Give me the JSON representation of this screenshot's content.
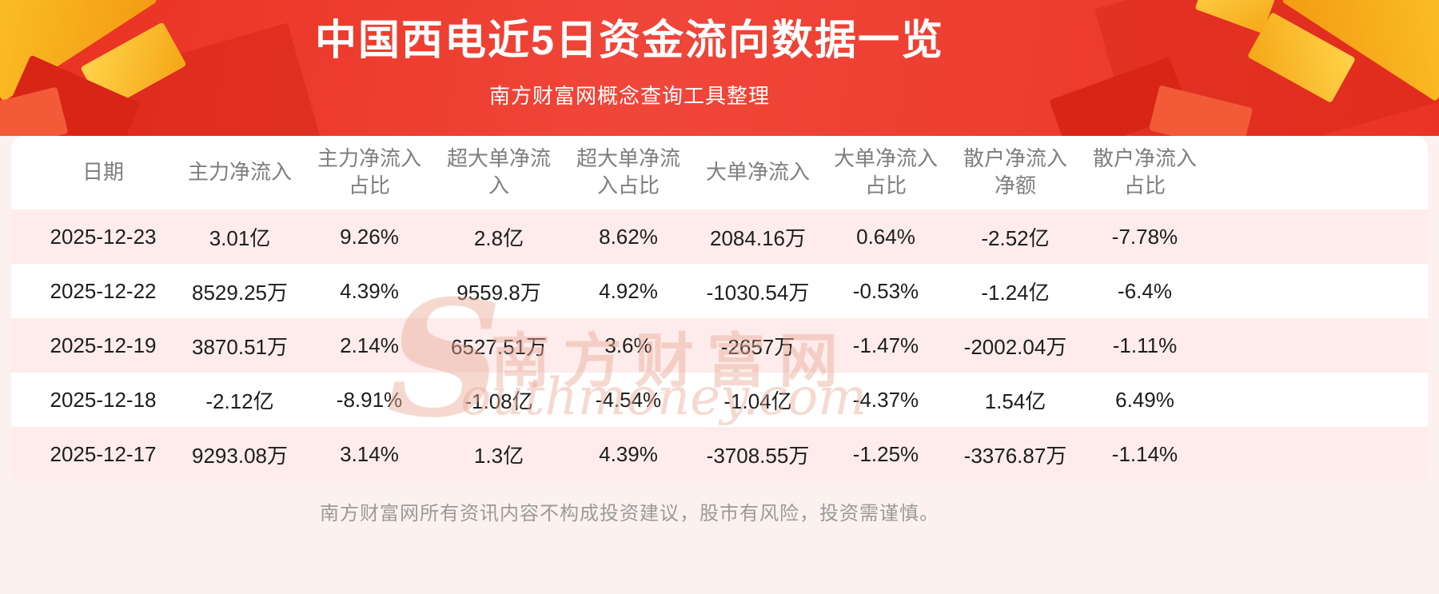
{
  "chart_data": {
    "type": "table",
    "title": "中国西电近5日资金流向数据一览",
    "subtitle": "南方财富网概念查询工具整理",
    "columns": [
      "日期",
      "主力净流入",
      "主力净流入占比",
      "超大单净流入",
      "超大单净流入占比",
      "大单净流入",
      "大单净流入占比",
      "散户净流入净额",
      "散户净流入占比"
    ],
    "rows": [
      [
        "2025-12-23",
        "3.01亿",
        "9.26%",
        "2.8亿",
        "8.62%",
        "2084.16万",
        "0.64%",
        "-2.52亿",
        "-7.78%"
      ],
      [
        "2025-12-22",
        "8529.25万",
        "4.39%",
        "9559.8万",
        "4.92%",
        "-1030.54万",
        "-0.53%",
        "-1.24亿",
        "-6.4%"
      ],
      [
        "2025-12-19",
        "3870.51万",
        "2.14%",
        "6527.51万",
        "3.6%",
        "-2657万",
        "-1.47%",
        "-2002.04万",
        "-1.11%"
      ],
      [
        "2025-12-18",
        "-2.12亿",
        "-8.91%",
        "-1.08亿",
        "-4.54%",
        "-1.04亿",
        "-4.37%",
        "1.54亿",
        "6.49%"
      ],
      [
        "2025-12-17",
        "9293.08万",
        "3.14%",
        "1.3亿",
        "4.39%",
        "-3708.55万",
        "-1.25%",
        "-3376.87万",
        "-1.14%"
      ]
    ]
  },
  "watermark": {
    "big_letter": "S",
    "chinese": "南方财富网",
    "latin": "outhmoney.com"
  },
  "footer": {
    "disclaimer": "南方财富网所有资讯内容不构成投资建议，股市有风险，投资需谨慎。"
  },
  "colors": {
    "header_red": "#ec3222",
    "header_red_dark": "#d82516",
    "accent_gold": "#f7b52c",
    "page_pink": "#fdf1f0",
    "row_pink": "#fdeceb",
    "text_dark": "#1d1d1d",
    "text_gray": "#7e7e7e"
  }
}
